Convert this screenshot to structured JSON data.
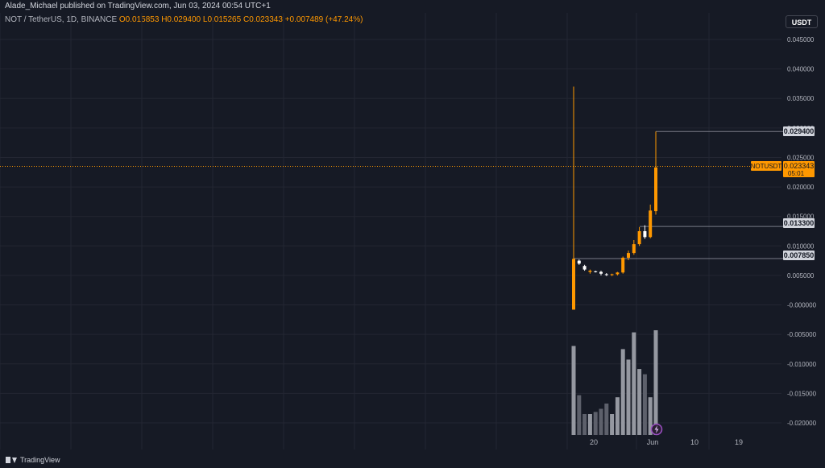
{
  "header": {
    "publisher_line": "Alade_Michael published on TradingView.com, Jun 03, 2024 00:54 UTC+1"
  },
  "legend": {
    "symbol": "NOT / TetherUS, 1D, BINANCE",
    "open": "O0.015853",
    "high": "H0.029400",
    "low": "L0.015265",
    "close": "C0.023343",
    "change": "+0.007489 (+47.24%)"
  },
  "currency_button": {
    "label": "USDT"
  },
  "price_axis": {
    "ticks": [
      "0.045000",
      "0.040000",
      "0.035000",
      "0.030000",
      "0.025000",
      "0.020000",
      "0.015000",
      "0.010000",
      "0.005000",
      "-0.000000",
      "-0.005000",
      "-0.010000",
      "-0.015000",
      "-0.020000"
    ]
  },
  "labels": {
    "high_marker": "0.029400",
    "symbol_tag": "NOTUSDT",
    "last_price": "0.023343",
    "countdown": "05:01",
    "level_mid": "0.013300",
    "level_low": "0.007850"
  },
  "time_axis": {
    "ticks": [
      "20",
      "Jun",
      "10",
      "19"
    ]
  },
  "footer": {
    "brand": "TradingView"
  },
  "colors": {
    "up": "#ff9800",
    "down": "#ffffff",
    "background": "#161a25",
    "grid": "#232632",
    "volume_up": "#9598a1",
    "volume_down": "#5d606b"
  },
  "chart_data": {
    "type": "candlestick",
    "y_range": [
      -0.0245,
      0.0495
    ],
    "candles": [
      {
        "o": 0.0078,
        "h": 0.037,
        "l": -0.0008,
        "c": -0.0008,
        "up": true
      },
      {
        "o": 0.0075,
        "h": 0.0077,
        "l": 0.0068,
        "c": 0.007,
        "up": false
      },
      {
        "o": 0.0066,
        "h": 0.0068,
        "l": 0.0058,
        "c": 0.006,
        "up": false
      },
      {
        "o": 0.0058,
        "h": 0.006,
        "l": 0.0053,
        "c": 0.0056,
        "up": true
      },
      {
        "o": 0.0056,
        "h": 0.0058,
        "l": 0.0055,
        "c": 0.0057,
        "up": false
      },
      {
        "o": 0.0056,
        "h": 0.0058,
        "l": 0.005,
        "c": 0.0053,
        "up": false
      },
      {
        "o": 0.0052,
        "h": 0.0054,
        "l": 0.0049,
        "c": 0.0051,
        "up": false
      },
      {
        "o": 0.0051,
        "h": 0.0053,
        "l": 0.0049,
        "c": 0.0052,
        "up": true
      },
      {
        "o": 0.0052,
        "h": 0.0056,
        "l": 0.005,
        "c": 0.0055,
        "up": true
      },
      {
        "o": 0.0055,
        "h": 0.0082,
        "l": 0.0053,
        "c": 0.008,
        "up": true
      },
      {
        "o": 0.008,
        "h": 0.0092,
        "l": 0.0076,
        "c": 0.0088,
        "up": true
      },
      {
        "o": 0.0088,
        "h": 0.011,
        "l": 0.0085,
        "c": 0.0103,
        "up": true
      },
      {
        "o": 0.0103,
        "h": 0.0132,
        "l": 0.01,
        "c": 0.0125,
        "up": true
      },
      {
        "o": 0.0125,
        "h": 0.0135,
        "l": 0.0112,
        "c": 0.0115,
        "up": false
      },
      {
        "o": 0.0115,
        "h": 0.017,
        "l": 0.0113,
        "c": 0.016,
        "up": true
      },
      {
        "o": 0.0159,
        "h": 0.0294,
        "l": 0.0153,
        "c": 0.0233,
        "up": true
      }
    ],
    "volume": [
      0.85,
      0.38,
      0.2,
      0.2,
      0.22,
      0.25,
      0.3,
      0.2,
      0.36,
      0.82,
      0.72,
      0.98,
      0.63,
      0.58,
      0.36,
      1.0
    ],
    "levels": [
      0.0294,
      0.0133,
      0.00785
    ]
  }
}
